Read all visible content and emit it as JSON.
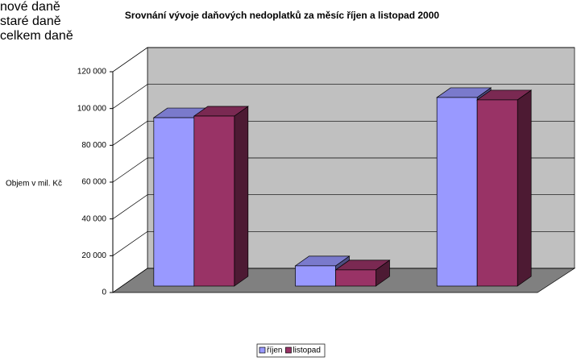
{
  "chart_data": {
    "type": "bar3d",
    "title": "Srovnání vývoje daňových nedoplatků za měsíc říjen a listopad 2000",
    "y_label": "Objem v mil. Kč",
    "categories": [
      "nové daně",
      "staré daně",
      "celkem daně"
    ],
    "series": [
      {
        "name": "říjen",
        "color": "#9999ff",
        "values": [
          91500,
          11000,
          102500
        ]
      },
      {
        "name": "listopad",
        "color": "#993366",
        "values": [
          92400,
          8800,
          101200
        ]
      }
    ],
    "ylim": [
      0,
      120000
    ],
    "yticks": [
      0,
      {
        "value": 20000,
        "label": "20 000"
      },
      {
        "value": 40000,
        "label": "40 000"
      },
      {
        "value": 60000,
        "label": "60 000"
      },
      {
        "value": 80000,
        "label": "80 000"
      },
      {
        "value": 100000,
        "label": "100 000"
      },
      {
        "value": 120000,
        "label": "120 000"
      }
    ],
    "grid": true,
    "legend": "bottom"
  }
}
